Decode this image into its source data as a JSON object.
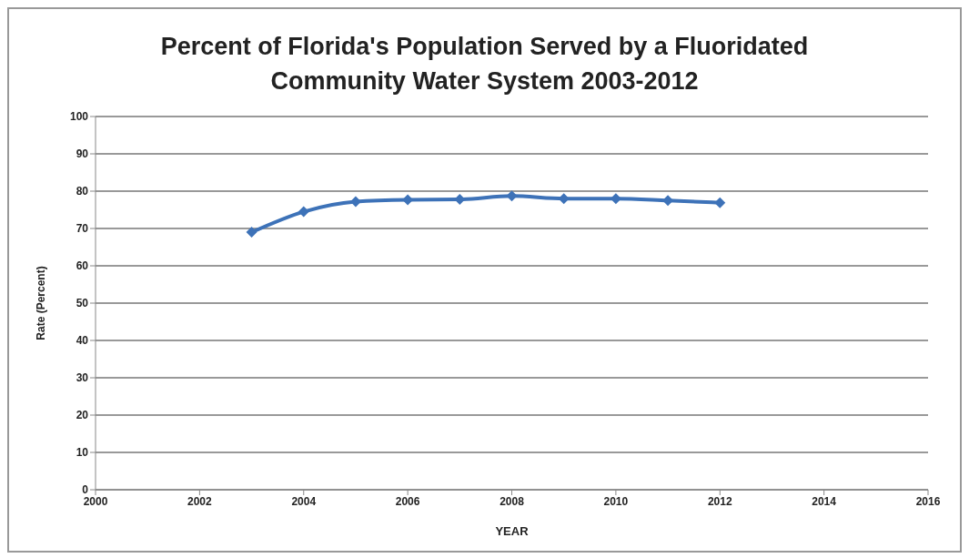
{
  "chart_data": {
    "type": "line",
    "title": "Percent of Florida's Population Served by a Fluoridated Community Water System 2003-2012",
    "xlabel": "YEAR",
    "ylabel": "Rate (Percent)",
    "x": [
      2003,
      2004,
      2005,
      2006,
      2007,
      2008,
      2009,
      2010,
      2011,
      2012
    ],
    "series": [
      {
        "color": "#3d72b8",
        "values": [
          69,
          74.5,
          77.2,
          77.7,
          77.8,
          78.7,
          78,
          78,
          77.5,
          76.9
        ]
      }
    ],
    "xlim": [
      2000,
      2016
    ],
    "xticks": [
      2000,
      2002,
      2004,
      2006,
      2008,
      2010,
      2012,
      2014,
      2016
    ],
    "ylim": [
      0,
      100
    ],
    "yticks": [
      0,
      10,
      20,
      30,
      40,
      50,
      60,
      70,
      80,
      90,
      100
    ],
    "grid": "y",
    "marker": "diamond",
    "line_style": "solid"
  }
}
